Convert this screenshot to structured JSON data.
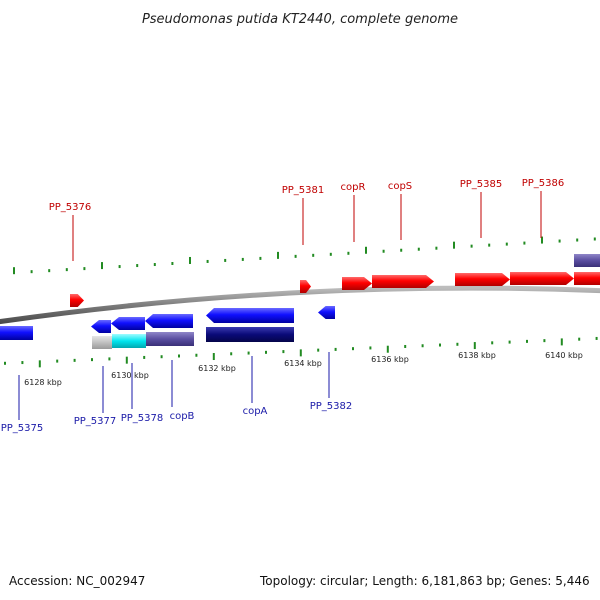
{
  "title": "Pseudomonas putida KT2440, complete genome",
  "footer": {
    "accession": "Accession: NC_002947",
    "summary": "Topology: circular; Length: 6,181,863 bp; Genes: 5,446"
  },
  "colors": {
    "forward_gene": "#ff0000",
    "reverse_gene": "#1010ff",
    "label_forward": "#c00000",
    "label_reverse": "#1a1aa8",
    "backbone": "#888888",
    "tick": "#228b22",
    "cog_cyan": "#00e5ee",
    "cog_slate": "#5a4ea0",
    "cog_navy": "#0a0a78",
    "cog_gray": "#c0c0c0"
  },
  "tick_labels": [
    "6128 kbp",
    "6130 kbp",
    "6132 kbp",
    "6134 kbp",
    "6136 kbp",
    "6138 kbp",
    "6140 kbp"
  ],
  "forward_labels": [
    "PP_5376",
    "PP_5381",
    "copR",
    "copS",
    "PP_5385",
    "PP_5386"
  ],
  "reverse_labels": [
    "PP_5375",
    "PP_5377",
    "PP_5378",
    "copB",
    "copA",
    "PP_5382"
  ]
}
